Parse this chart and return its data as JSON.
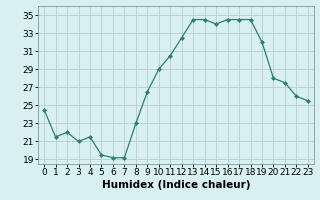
{
  "x": [
    0,
    1,
    2,
    3,
    4,
    5,
    6,
    7,
    8,
    9,
    10,
    11,
    12,
    13,
    14,
    15,
    16,
    17,
    18,
    19,
    20,
    21,
    22,
    23
  ],
  "y": [
    24.5,
    21.5,
    22.0,
    21.0,
    21.5,
    19.5,
    19.2,
    19.2,
    23.0,
    26.5,
    29.0,
    30.5,
    32.5,
    34.5,
    34.5,
    34.0,
    34.5,
    34.5,
    34.5,
    32.0,
    28.0,
    27.5,
    26.0,
    25.5
  ],
  "line_color": "#2e7d6e",
  "marker": "D",
  "marker_size": 2.0,
  "bg_color": "#d8f0f0",
  "grid_color": "#b8cece",
  "xlabel": "Humidex (Indice chaleur)",
  "xlim": [
    -0.5,
    23.5
  ],
  "ylim": [
    18.5,
    36.0
  ],
  "yticks": [
    19,
    21,
    23,
    25,
    27,
    29,
    31,
    33,
    35
  ],
  "xticks": [
    0,
    1,
    2,
    3,
    4,
    5,
    6,
    7,
    8,
    9,
    10,
    11,
    12,
    13,
    14,
    15,
    16,
    17,
    18,
    19,
    20,
    21,
    22,
    23
  ],
  "xlabel_fontsize": 7.5,
  "tick_fontsize": 6.5
}
